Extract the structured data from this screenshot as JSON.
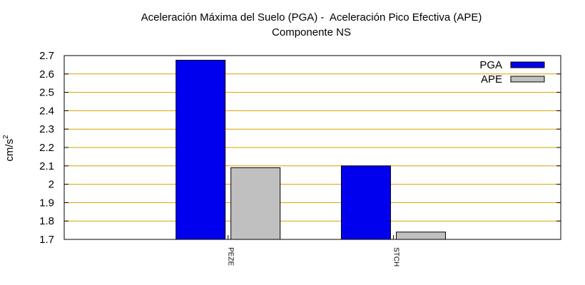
{
  "chart_data": {
    "type": "bar",
    "title_lines": [
      "Aceleración Máxima del Suelo (PGA) -  Aceleración Pico Efectiva (APE)",
      "Componente NS"
    ],
    "ylabel": "cm/s",
    "ylabel_superscript": "2",
    "xlabel": "",
    "categories": [
      "PEZE",
      "STCH"
    ],
    "series": [
      {
        "name": "PGA",
        "values": [
          2.675,
          2.1
        ],
        "color": "#0000ee"
      },
      {
        "name": "APE",
        "values": [
          2.09,
          1.74
        ],
        "color": "#c0c0c0"
      }
    ],
    "ylim": [
      1.7,
      2.7
    ],
    "yticks": [
      1.7,
      1.8,
      1.9,
      2.0,
      2.1,
      2.2,
      2.3,
      2.4,
      2.5,
      2.6,
      2.7
    ],
    "ytick_labels": [
      "1.7",
      "1.8",
      "1.9",
      "2",
      "2.1",
      "2.2",
      "2.3",
      "2.4",
      "2.5",
      "2.6",
      "2.7"
    ],
    "grid": true,
    "grid_color": "#d9a000",
    "legend_position": "top-right"
  }
}
